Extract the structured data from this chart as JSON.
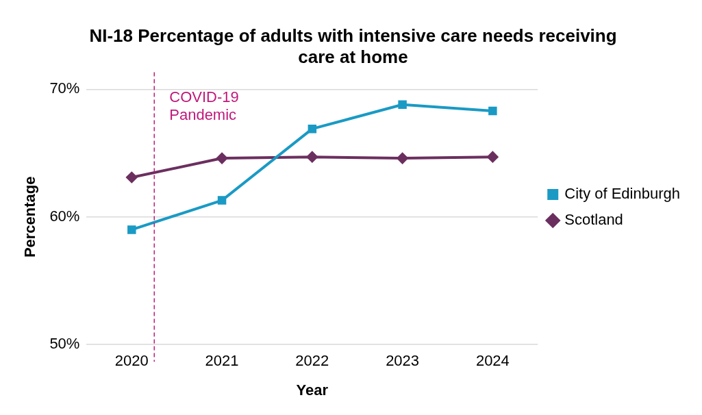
{
  "chart_data": {
    "type": "line",
    "title": "NI-18 Percentage of adults with intensive care needs receiving care at home",
    "xlabel": "Year",
    "ylabel": "Percentage",
    "x": [
      2020,
      2021,
      2022,
      2023,
      2024
    ],
    "xlim": [
      2019.5,
      2024.5
    ],
    "xticks": [
      2020,
      2021,
      2022,
      2023,
      2024
    ],
    "ylim": [
      50,
      70
    ],
    "yticks": [
      {
        "value": 50,
        "label": "50%"
      },
      {
        "value": 60,
        "label": "60%"
      },
      {
        "value": 70,
        "label": "70%"
      }
    ],
    "series": [
      {
        "name": "City of Edinburgh",
        "color": "#1a9ac4",
        "marker": "square",
        "values": [
          59.0,
          61.3,
          66.9,
          68.8,
          68.3
        ]
      },
      {
        "name": "Scotland",
        "color": "#6b2f5f",
        "marker": "diamond",
        "values": [
          63.1,
          64.6,
          64.7,
          64.6,
          64.7
        ]
      }
    ],
    "ref_lines": [
      {
        "axis": "x",
        "value": 2020.25,
        "label": "COVID-19 Pandemic",
        "color": "#c0187a",
        "line_style": "dashed"
      }
    ],
    "grid": "y",
    "legend": "right",
    "line_style": "solid"
  }
}
